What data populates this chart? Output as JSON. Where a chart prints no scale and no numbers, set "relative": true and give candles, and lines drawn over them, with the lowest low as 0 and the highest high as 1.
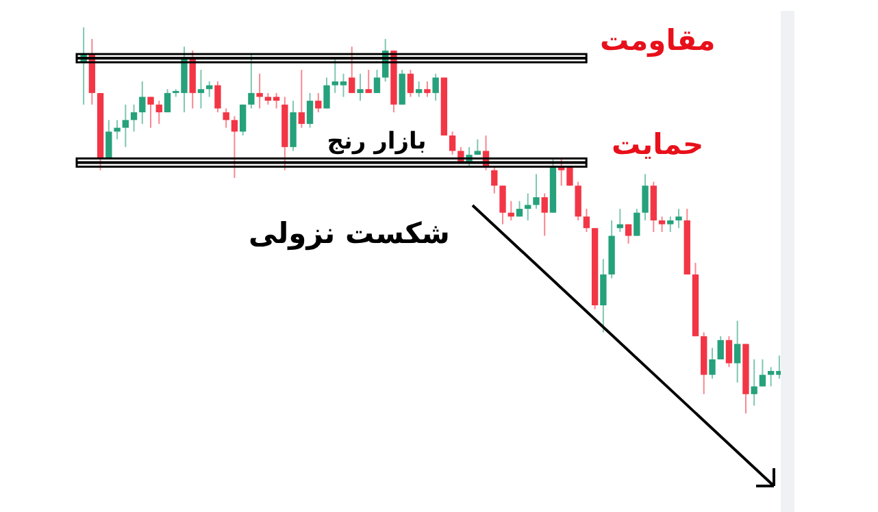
{
  "chart_data": {
    "type": "candlestick",
    "relative": true,
    "categories": [
      null,
      null,
      null,
      null,
      null,
      null,
      null,
      null,
      null,
      null,
      null,
      null,
      null,
      null,
      null,
      null,
      null,
      null,
      null,
      null,
      null,
      null,
      null,
      null,
      null,
      null,
      null,
      null,
      null,
      null,
      null,
      null,
      null,
      null,
      null,
      null,
      null,
      null,
      null,
      null,
      null,
      null,
      null,
      null,
      null,
      null,
      null,
      null,
      null,
      null,
      null,
      null,
      null,
      null,
      null,
      null,
      null,
      null,
      null,
      null,
      null,
      null,
      null,
      null,
      null,
      null,
      null,
      null,
      null,
      null,
      null,
      null,
      null,
      null,
      null,
      null,
      null,
      null,
      null,
      null,
      null,
      null,
      null,
      null
    ],
    "ohlc": [
      [
        0.91,
        1.0,
        0.8,
        0.93
      ],
      [
        0.93,
        0.97,
        0.8,
        0.83
      ],
      [
        0.83,
        0.83,
        0.63,
        0.66
      ],
      [
        0.66,
        0.76,
        0.66,
        0.73
      ],
      [
        0.73,
        0.76,
        0.71,
        0.74
      ],
      [
        0.74,
        0.8,
        0.69,
        0.76
      ],
      [
        0.76,
        0.8,
        0.73,
        0.78
      ],
      [
        0.78,
        0.86,
        0.75,
        0.82
      ],
      [
        0.82,
        0.82,
        0.74,
        0.8
      ],
      [
        0.8,
        0.81,
        0.75,
        0.78
      ],
      [
        0.78,
        0.84,
        0.78,
        0.83
      ],
      [
        0.83,
        0.84,
        0.82,
        0.83
      ],
      [
        0.83,
        0.95,
        0.78,
        0.92
      ],
      [
        0.92,
        0.94,
        0.79,
        0.83
      ],
      [
        0.83,
        0.89,
        0.79,
        0.84
      ],
      [
        0.84,
        0.86,
        0.82,
        0.85
      ],
      [
        0.85,
        0.86,
        0.78,
        0.79
      ],
      [
        0.78,
        0.79,
        0.74,
        0.76
      ],
      [
        0.76,
        0.77,
        0.61,
        0.73
      ],
      [
        0.73,
        0.8,
        0.72,
        0.8
      ],
      [
        0.8,
        0.93,
        0.79,
        0.83
      ],
      [
        0.83,
        0.88,
        0.79,
        0.82
      ],
      [
        0.82,
        0.83,
        0.8,
        0.81
      ],
      [
        0.82,
        0.83,
        0.79,
        0.81
      ],
      [
        0.8,
        0.82,
        0.63,
        0.69
      ],
      [
        0.69,
        0.81,
        0.68,
        0.78
      ],
      [
        0.78,
        0.89,
        0.74,
        0.75
      ],
      [
        0.75,
        0.83,
        0.74,
        0.81
      ],
      [
        0.81,
        0.83,
        0.78,
        0.79
      ],
      [
        0.79,
        0.87,
        0.79,
        0.85
      ],
      [
        0.85,
        0.92,
        0.83,
        0.86
      ],
      [
        0.85,
        0.88,
        0.82,
        0.86
      ],
      [
        0.87,
        0.95,
        0.83,
        0.83
      ],
      [
        0.83,
        0.88,
        0.81,
        0.84
      ],
      [
        0.84,
        0.89,
        0.83,
        0.83
      ],
      [
        0.83,
        0.89,
        0.83,
        0.87
      ],
      [
        0.87,
        0.97,
        0.86,
        0.94
      ],
      [
        0.94,
        0.94,
        0.78,
        0.8
      ],
      [
        0.8,
        0.89,
        0.8,
        0.88
      ],
      [
        0.88,
        0.89,
        0.82,
        0.83
      ],
      [
        0.83,
        0.86,
        0.82,
        0.84
      ],
      [
        0.84,
        0.86,
        0.82,
        0.83
      ],
      [
        0.83,
        0.88,
        0.81,
        0.87
      ],
      [
        0.87,
        0.87,
        0.72,
        0.72
      ],
      [
        0.72,
        0.73,
        0.67,
        0.68
      ],
      [
        0.68,
        0.69,
        0.65,
        0.65
      ],
      [
        0.65,
        0.69,
        0.64,
        0.67
      ],
      [
        0.67,
        0.71,
        0.67,
        0.68
      ],
      [
        0.68,
        0.72,
        0.63,
        0.64
      ],
      [
        0.63,
        0.64,
        0.57,
        0.59
      ],
      [
        0.59,
        0.59,
        0.49,
        0.52
      ],
      [
        0.52,
        0.55,
        0.5,
        0.51
      ],
      [
        0.51,
        0.55,
        0.51,
        0.53
      ],
      [
        0.53,
        0.57,
        0.5,
        0.54
      ],
      [
        0.54,
        0.62,
        0.53,
        0.56
      ],
      [
        0.56,
        0.57,
        0.46,
        0.52
      ],
      [
        0.52,
        0.66,
        0.52,
        0.64
      ],
      [
        0.64,
        0.66,
        0.59,
        0.63
      ],
      [
        0.64,
        0.64,
        0.59,
        0.59
      ],
      [
        0.59,
        0.6,
        0.5,
        0.51
      ],
      [
        0.51,
        0.53,
        0.47,
        0.48
      ],
      [
        0.48,
        0.48,
        0.27,
        0.28
      ],
      [
        0.28,
        0.4,
        0.21,
        0.36
      ],
      [
        0.36,
        0.5,
        0.35,
        0.46
      ],
      [
        0.48,
        0.53,
        0.47,
        0.49
      ],
      [
        0.49,
        0.49,
        0.44,
        0.46
      ],
      [
        0.46,
        0.53,
        0.46,
        0.52
      ],
      [
        0.52,
        0.62,
        0.5,
        0.59
      ],
      [
        0.59,
        0.6,
        0.47,
        0.5
      ],
      [
        0.5,
        0.51,
        0.47,
        0.49
      ],
      [
        0.49,
        0.51,
        0.47,
        0.5
      ],
      [
        0.5,
        0.53,
        0.48,
        0.51
      ],
      [
        0.5,
        0.53,
        0.36,
        0.36
      ],
      [
        0.36,
        0.39,
        0.2,
        0.2
      ],
      [
        0.2,
        0.21,
        0.05,
        0.1
      ],
      [
        0.1,
        0.17,
        0.09,
        0.14
      ],
      [
        0.14,
        0.2,
        0.14,
        0.19
      ],
      [
        0.19,
        0.2,
        0.12,
        0.13
      ],
      [
        0.13,
        0.24,
        0.08,
        0.18
      ],
      [
        0.18,
        0.18,
        0,
        0.05
      ],
      [
        0.05,
        0.14,
        0.02,
        0.07
      ],
      [
        0.07,
        0.14,
        0.07,
        0.1
      ],
      [
        0.1,
        0.12,
        0.07,
        0.11
      ],
      [
        0.1,
        0.15,
        0.09,
        0.11
      ]
    ],
    "ref_lines": [
      {
        "axis": "y",
        "value": 0.92,
        "label": "مقاومت",
        "color": "#000000"
      },
      {
        "axis": "y",
        "value": 0.65,
        "label": "حمایت",
        "color": "#000000"
      }
    ],
    "annotations": [
      "بازار رنج",
      "شکست نزولی"
    ]
  }
}
